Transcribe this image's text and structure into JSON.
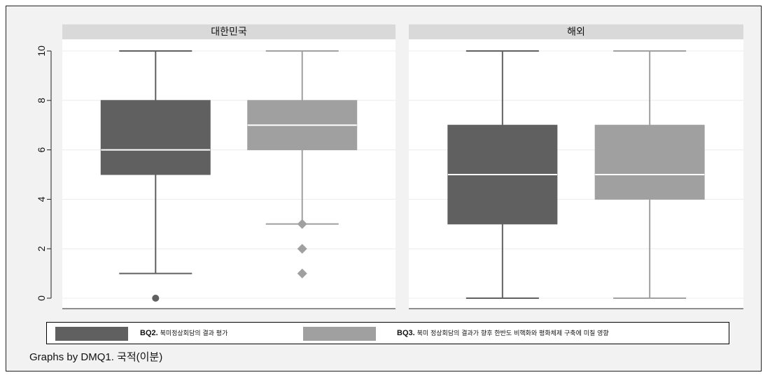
{
  "chart_data": {
    "type": "box",
    "ylim": [
      0,
      10
    ],
    "yticks": [
      0,
      2,
      4,
      6,
      8,
      10
    ],
    "grid": true,
    "legend_position": "bottom",
    "panels": [
      {
        "title": "대한민국",
        "boxes": [
          {
            "series": "BQ2",
            "min": 1,
            "q1": 5,
            "median": 6,
            "q3": 8,
            "max": 10,
            "outliers": [
              0
            ]
          },
          {
            "series": "BQ3",
            "min": 3,
            "q1": 6,
            "median": 7,
            "q3": 8,
            "max": 10,
            "outliers": [
              3,
              2,
              1
            ]
          }
        ]
      },
      {
        "title": "해외",
        "boxes": [
          {
            "series": "BQ2",
            "min": 0,
            "q1": 3,
            "median": 5,
            "q3": 7,
            "max": 10,
            "outliers": []
          },
          {
            "series": "BQ3",
            "min": 0,
            "q1": 4,
            "median": 5,
            "q3": 7,
            "max": 10,
            "outliers": []
          }
        ]
      }
    ],
    "series": [
      {
        "code": "BQ2.",
        "name": "북미정상회담의 결과 평가",
        "color": "#606060",
        "outlier_marker": "circle"
      },
      {
        "code": "BQ3.",
        "name": "북미 정상회담의 결과가 향후 한반도 비핵화와 평화체제 구축에 미칠 영향",
        "color": "#a0a0a0",
        "outlier_marker": "diamond"
      }
    ],
    "note": "Graphs by DMQ1. 국적(이분)"
  }
}
